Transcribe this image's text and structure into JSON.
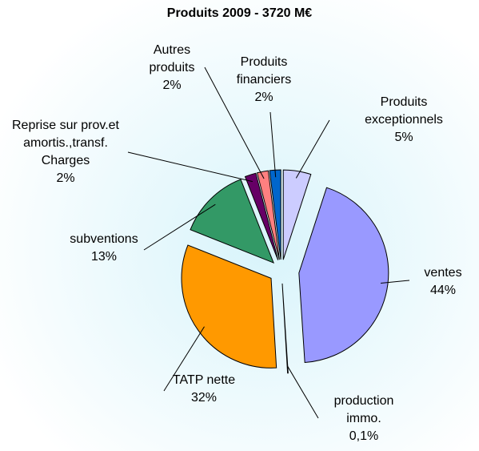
{
  "chart_data": {
    "type": "pie",
    "title": "Produits 2009 - 3720 M€",
    "categories": [
      "ventes",
      "production immo.",
      "TATP nette",
      "subventions",
      "Reprise sur prov.et amortis.,transf. Charges",
      "Autres produits",
      "Produits financiers",
      "Produits exceptionnels"
    ],
    "values": [
      44,
      0.1,
      32,
      13,
      2,
      2,
      2,
      5
    ],
    "value_labels": [
      "44%",
      "0,1%",
      "32%",
      "13%",
      "2%",
      "2%",
      "2%",
      "5%"
    ],
    "colors": [
      "#9999ff",
      "#ffffcc",
      "#ff9900",
      "#339966",
      "#660066",
      "#ff8080",
      "#0066cc",
      "#ccccff"
    ]
  }
}
